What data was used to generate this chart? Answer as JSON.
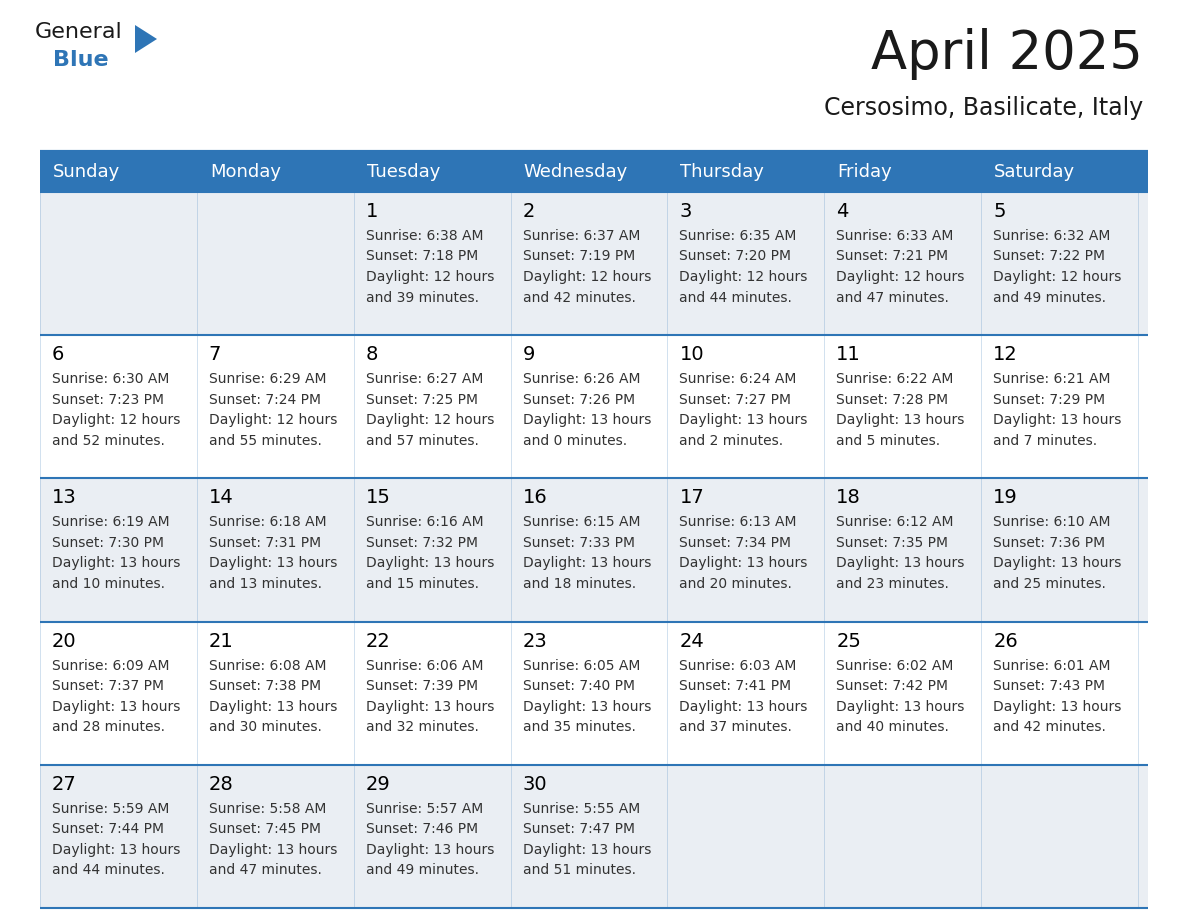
{
  "title": "April 2025",
  "subtitle": "Cersosimo, Basilicate, Italy",
  "days_of_week": [
    "Sunday",
    "Monday",
    "Tuesday",
    "Wednesday",
    "Thursday",
    "Friday",
    "Saturday"
  ],
  "header_bg": "#2E75B6",
  "header_text": "#FFFFFF",
  "row_bg_light": "#EAEEF3",
  "row_bg_white": "#FFFFFF",
  "day_number_color": "#000000",
  "cell_text_color": "#333333",
  "line_color": "#2E75B6",
  "calendar": [
    [
      {
        "day": "",
        "sunrise": "",
        "sunset": "",
        "daylight": ""
      },
      {
        "day": "",
        "sunrise": "",
        "sunset": "",
        "daylight": ""
      },
      {
        "day": "1",
        "sunrise": "6:38 AM",
        "sunset": "7:18 PM",
        "daylight": "12 hours and 39 minutes."
      },
      {
        "day": "2",
        "sunrise": "6:37 AM",
        "sunset": "7:19 PM",
        "daylight": "12 hours and 42 minutes."
      },
      {
        "day": "3",
        "sunrise": "6:35 AM",
        "sunset": "7:20 PM",
        "daylight": "12 hours and 44 minutes."
      },
      {
        "day": "4",
        "sunrise": "6:33 AM",
        "sunset": "7:21 PM",
        "daylight": "12 hours and 47 minutes."
      },
      {
        "day": "5",
        "sunrise": "6:32 AM",
        "sunset": "7:22 PM",
        "daylight": "12 hours and 49 minutes."
      }
    ],
    [
      {
        "day": "6",
        "sunrise": "6:30 AM",
        "sunset": "7:23 PM",
        "daylight": "12 hours and 52 minutes."
      },
      {
        "day": "7",
        "sunrise": "6:29 AM",
        "sunset": "7:24 PM",
        "daylight": "12 hours and 55 minutes."
      },
      {
        "day": "8",
        "sunrise": "6:27 AM",
        "sunset": "7:25 PM",
        "daylight": "12 hours and 57 minutes."
      },
      {
        "day": "9",
        "sunrise": "6:26 AM",
        "sunset": "7:26 PM",
        "daylight": "13 hours and 0 minutes."
      },
      {
        "day": "10",
        "sunrise": "6:24 AM",
        "sunset": "7:27 PM",
        "daylight": "13 hours and 2 minutes."
      },
      {
        "day": "11",
        "sunrise": "6:22 AM",
        "sunset": "7:28 PM",
        "daylight": "13 hours and 5 minutes."
      },
      {
        "day": "12",
        "sunrise": "6:21 AM",
        "sunset": "7:29 PM",
        "daylight": "13 hours and 7 minutes."
      }
    ],
    [
      {
        "day": "13",
        "sunrise": "6:19 AM",
        "sunset": "7:30 PM",
        "daylight": "13 hours and 10 minutes."
      },
      {
        "day": "14",
        "sunrise": "6:18 AM",
        "sunset": "7:31 PM",
        "daylight": "13 hours and 13 minutes."
      },
      {
        "day": "15",
        "sunrise": "6:16 AM",
        "sunset": "7:32 PM",
        "daylight": "13 hours and 15 minutes."
      },
      {
        "day": "16",
        "sunrise": "6:15 AM",
        "sunset": "7:33 PM",
        "daylight": "13 hours and 18 minutes."
      },
      {
        "day": "17",
        "sunrise": "6:13 AM",
        "sunset": "7:34 PM",
        "daylight": "13 hours and 20 minutes."
      },
      {
        "day": "18",
        "sunrise": "6:12 AM",
        "sunset": "7:35 PM",
        "daylight": "13 hours and 23 minutes."
      },
      {
        "day": "19",
        "sunrise": "6:10 AM",
        "sunset": "7:36 PM",
        "daylight": "13 hours and 25 minutes."
      }
    ],
    [
      {
        "day": "20",
        "sunrise": "6:09 AM",
        "sunset": "7:37 PM",
        "daylight": "13 hours and 28 minutes."
      },
      {
        "day": "21",
        "sunrise": "6:08 AM",
        "sunset": "7:38 PM",
        "daylight": "13 hours and 30 minutes."
      },
      {
        "day": "22",
        "sunrise": "6:06 AM",
        "sunset": "7:39 PM",
        "daylight": "13 hours and 32 minutes."
      },
      {
        "day": "23",
        "sunrise": "6:05 AM",
        "sunset": "7:40 PM",
        "daylight": "13 hours and 35 minutes."
      },
      {
        "day": "24",
        "sunrise": "6:03 AM",
        "sunset": "7:41 PM",
        "daylight": "13 hours and 37 minutes."
      },
      {
        "day": "25",
        "sunrise": "6:02 AM",
        "sunset": "7:42 PM",
        "daylight": "13 hours and 40 minutes."
      },
      {
        "day": "26",
        "sunrise": "6:01 AM",
        "sunset": "7:43 PM",
        "daylight": "13 hours and 42 minutes."
      }
    ],
    [
      {
        "day": "27",
        "sunrise": "5:59 AM",
        "sunset": "7:44 PM",
        "daylight": "13 hours and 44 minutes."
      },
      {
        "day": "28",
        "sunrise": "5:58 AM",
        "sunset": "7:45 PM",
        "daylight": "13 hours and 47 minutes."
      },
      {
        "day": "29",
        "sunrise": "5:57 AM",
        "sunset": "7:46 PM",
        "daylight": "13 hours and 49 minutes."
      },
      {
        "day": "30",
        "sunrise": "5:55 AM",
        "sunset": "7:47 PM",
        "daylight": "13 hours and 51 minutes."
      },
      {
        "day": "",
        "sunrise": "",
        "sunset": "",
        "daylight": ""
      },
      {
        "day": "",
        "sunrise": "",
        "sunset": "",
        "daylight": ""
      },
      {
        "day": "",
        "sunrise": "",
        "sunset": "",
        "daylight": ""
      }
    ]
  ],
  "logo_color_general": "#1a1a1a",
  "logo_color_blue": "#2E75B6",
  "logo_triangle_color": "#2E75B6",
  "title_fontsize": 38,
  "subtitle_fontsize": 17,
  "header_fontsize": 13,
  "day_num_fontsize": 14,
  "cell_fontsize": 10
}
